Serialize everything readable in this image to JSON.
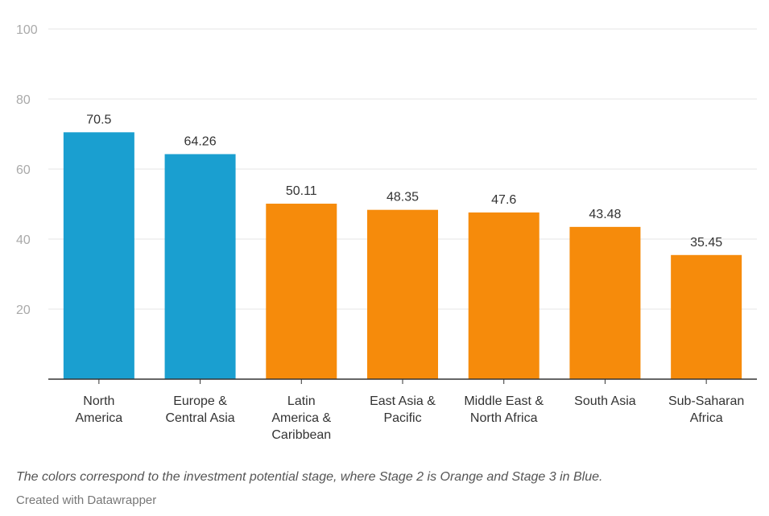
{
  "chart_data": {
    "type": "bar",
    "categories": [
      [
        "North",
        "America"
      ],
      [
        "Europe &",
        "Central Asia"
      ],
      [
        "Latin",
        "America &",
        "Caribbean"
      ],
      [
        "East Asia &",
        "Pacific"
      ],
      [
        "Middle East &",
        "North Africa"
      ],
      [
        "South Asia"
      ],
      [
        "Sub-Saharan",
        "Africa"
      ]
    ],
    "values": [
      70.5,
      64.26,
      50.11,
      48.35,
      47.6,
      43.48,
      35.45
    ],
    "value_labels": [
      "70.5",
      "64.26",
      "50.11",
      "48.35",
      "47.6",
      "43.48",
      "35.45"
    ],
    "stage": [
      3,
      3,
      2,
      2,
      2,
      2,
      2
    ],
    "colors": {
      "stage2": "#f68b0b",
      "stage3": "#1a9fd0"
    },
    "y_ticks": [
      20,
      40,
      60,
      80,
      100
    ],
    "ylim": [
      0,
      100
    ],
    "grid": true,
    "legend": "none"
  },
  "footer": {
    "note": "The colors correspond to the investment potential stage, where Stage 2 is Orange and Stage 3 in Blue.",
    "credit": "Created with Datawrapper"
  }
}
